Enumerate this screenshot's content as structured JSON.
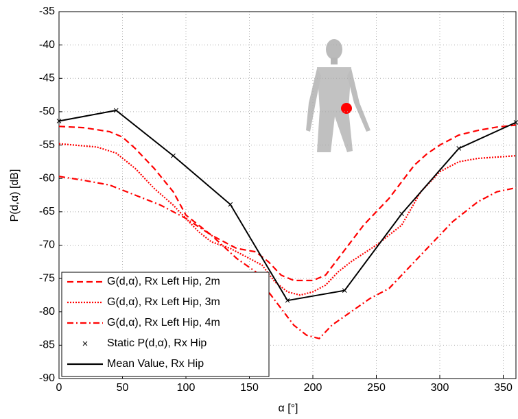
{
  "chart_data": {
    "type": "line",
    "xlabel": "α [°]",
    "ylabel": "P(d,α) [dB]",
    "xlim": [
      0,
      360
    ],
    "ylim": [
      -90,
      -35
    ],
    "xticks": [
      0,
      50,
      100,
      150,
      200,
      250,
      300,
      350
    ],
    "yticks": [
      -90,
      -85,
      -80,
      -75,
      -70,
      -65,
      -60,
      -55,
      -50,
      -45,
      -40,
      -35
    ],
    "grid": true,
    "legend": "lower left",
    "series": [
      {
        "name": "G(d,α), Rx Left Hip, 2m",
        "color": "#ff0000",
        "dash": "dashed",
        "x": [
          0,
          20,
          40,
          50,
          60,
          75,
          90,
          100,
          110,
          120,
          140,
          155,
          165,
          175,
          185,
          200,
          210,
          220,
          230,
          240,
          250,
          260,
          270,
          280,
          290,
          300,
          315,
          330,
          345,
          360
        ],
        "values": [
          -52.2,
          -52.4,
          -53,
          -53.8,
          -55.5,
          -58.5,
          -62,
          -65.5,
          -67,
          -68.5,
          -70.5,
          -71,
          -72.5,
          -74.5,
          -75.3,
          -75.3,
          -74.5,
          -72,
          -69.5,
          -67,
          -65,
          -63,
          -60.5,
          -58,
          -56.3,
          -55,
          -53.5,
          -52.8,
          -52.3,
          -52
        ]
      },
      {
        "name": "G(d,α), Rx Left Hip, 3m",
        "color": "#ff0000",
        "dash": "dotted",
        "x": [
          0,
          30,
          45,
          60,
          75,
          90,
          100,
          110,
          120,
          135,
          145,
          160,
          170,
          180,
          190,
          200,
          210,
          220,
          230,
          250,
          270,
          285,
          300,
          315,
          330,
          360
        ],
        "values": [
          -54.8,
          -55.3,
          -56.2,
          -58.5,
          -61.5,
          -64,
          -66,
          -68,
          -69.5,
          -70.5,
          -71.5,
          -73,
          -75.5,
          -77,
          -77.5,
          -77,
          -76,
          -74,
          -72.5,
          -70,
          -67,
          -62,
          -59,
          -57.5,
          -57,
          -56.6
        ]
      },
      {
        "name": "G(d,α), Rx Left Hip, 4m",
        "color": "#ff0000",
        "dash": "dashdot",
        "x": [
          0,
          20,
          40,
          60,
          80,
          100,
          120,
          140,
          155,
          165,
          175,
          185,
          195,
          205,
          215,
          230,
          245,
          260,
          275,
          290,
          310,
          330,
          345,
          360
        ],
        "values": [
          -59.7,
          -60.3,
          -61,
          -62.5,
          -64,
          -66,
          -68.5,
          -72,
          -74,
          -77,
          -79.5,
          -82,
          -83.5,
          -84,
          -82,
          -80,
          -78,
          -76.5,
          -73.5,
          -70.5,
          -66.5,
          -63.5,
          -62,
          -61.4
        ]
      },
      {
        "name": "Static P(d,α), Rx Hip",
        "color": "#000000",
        "dash": "none",
        "marker": "x",
        "x": [
          0,
          45,
          90,
          135,
          180,
          225,
          270,
          315,
          360
        ],
        "values": [
          -51.4,
          -49.8,
          -56.6,
          -63.9,
          -78.3,
          -76.8,
          -65.3,
          -55.5,
          -51.6
        ]
      },
      {
        "name": "Mean Value, Rx Hip",
        "color": "#000000",
        "dash": "solid",
        "x": [
          0,
          45,
          90,
          135,
          180,
          225,
          270,
          315,
          360
        ],
        "values": [
          -51.4,
          -49.8,
          -56.6,
          -63.9,
          -78.3,
          -76.8,
          -65.3,
          -55.5,
          -51.6
        ]
      }
    ]
  }
}
